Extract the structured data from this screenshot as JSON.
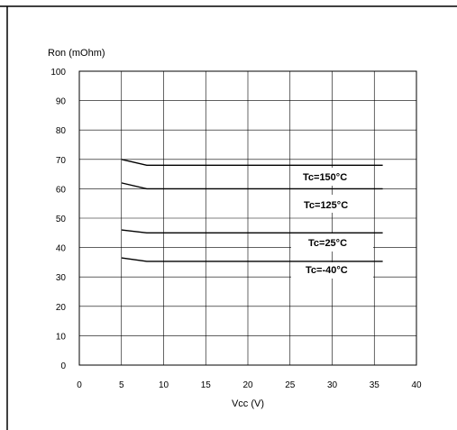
{
  "chart_data": {
    "type": "line",
    "title": "",
    "xlabel": "Vcc (V)",
    "ylabel": "Ron (mOhm)",
    "xlim": [
      0,
      40
    ],
    "ylim": [
      0,
      100
    ],
    "xticks": [
      0,
      5,
      10,
      15,
      20,
      25,
      30,
      35,
      40
    ],
    "yticks": [
      0,
      10,
      20,
      30,
      40,
      50,
      60,
      70,
      80,
      90,
      100
    ],
    "grid": true,
    "series": [
      {
        "name": "Tc=150°C",
        "x": [
          5,
          8,
          36
        ],
        "y": [
          70,
          68,
          68
        ]
      },
      {
        "name": "Tc=125°C",
        "x": [
          5,
          8,
          36
        ],
        "y": [
          62,
          60,
          60
        ]
      },
      {
        "name": "Tc=25°C",
        "x": [
          5,
          8,
          36
        ],
        "y": [
          46,
          45,
          45
        ]
      },
      {
        "name": "Tc=-40°C",
        "x": [
          5,
          8,
          36
        ],
        "y": [
          36.5,
          35.3,
          35.3
        ]
      }
    ]
  }
}
